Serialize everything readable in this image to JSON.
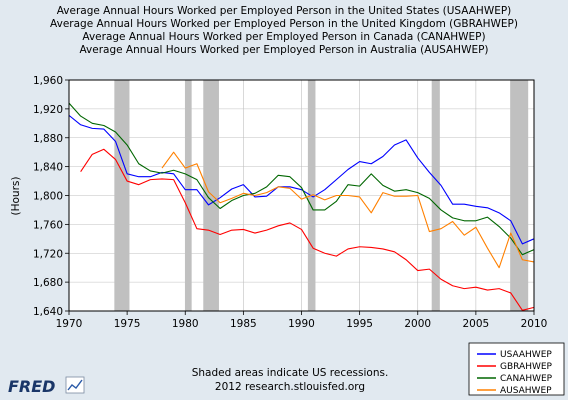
{
  "chart_data": {
    "type": "line",
    "titles": [
      "Average Annual Hours Worked per Employed Person in the United States (USAAHWEP)",
      "Average Annual Hours Worked per Employed Person in the United Kingdom (GBRAHWEP)",
      "Average Annual Hours Worked per Employed Person in Canada (CANAHWEP)",
      "Average Annual Hours Worked per Employed Person in Australia (AUSAHWEP)"
    ],
    "ylabel": "(Hours)",
    "xlabel": "",
    "xlim": [
      1970,
      2010
    ],
    "ylim": [
      1640,
      1960
    ],
    "x_ticks": [
      1970,
      1975,
      1980,
      1985,
      1990,
      1995,
      2000,
      2005,
      2010
    ],
    "y_ticks": [
      1640,
      1680,
      1720,
      1760,
      1800,
      1840,
      1880,
      1920,
      1960
    ],
    "y_tick_labels": [
      "1,640",
      "1,680",
      "1,720",
      "1,760",
      "1,800",
      "1,840",
      "1,880",
      "1,920",
      "1,960"
    ],
    "grid": true,
    "legend_position": "bottom-right",
    "recessions": [
      [
        1973.9,
        1975.2
      ],
      [
        1980.0,
        1980.55
      ],
      [
        1981.55,
        1982.9
      ],
      [
        1990.55,
        1991.2
      ],
      [
        2001.2,
        2001.9
      ],
      [
        2007.95,
        2009.5
      ]
    ],
    "x": [
      1970,
      1971,
      1972,
      1973,
      1974,
      1975,
      1976,
      1977,
      1978,
      1979,
      1980,
      1981,
      1982,
      1983,
      1984,
      1985,
      1986,
      1987,
      1988,
      1989,
      1990,
      1991,
      1992,
      1993,
      1994,
      1995,
      1996,
      1997,
      1998,
      1999,
      2000,
      2001,
      2002,
      2003,
      2004,
      2005,
      2006,
      2007,
      2008,
      2009,
      2010
    ],
    "series": [
      {
        "name": "USAAHWEP",
        "color": "#0000ff",
        "values": [
          1911,
          1898,
          1893,
          1892,
          1875,
          1830,
          1826,
          1826,
          1832,
          1830,
          1808,
          1808,
          1787,
          1797,
          1809,
          1815,
          1798,
          1799,
          1812,
          1812,
          1808,
          1798,
          1808,
          1822,
          1836,
          1847,
          1844,
          1854,
          1870,
          1877,
          1852,
          1832,
          1814,
          1788,
          1788,
          1785,
          1783,
          1776,
          1765,
          1733,
          1740
        ]
      },
      {
        "name": "GBRAHWEP",
        "color": "#ff0000",
        "values": [
          null,
          1833,
          1857,
          1864,
          1850,
          1820,
          1815,
          1822,
          1823,
          1822,
          1790,
          1754,
          1752,
          1746,
          1752,
          1753,
          1748,
          1752,
          1758,
          1762,
          1753,
          1727,
          1720,
          1716,
          1726,
          1729,
          1728,
          1726,
          1722,
          1711,
          1696,
          1698,
          1684,
          1675,
          1671,
          1673,
          1669,
          1671,
          1665,
          1641,
          1645
        ]
      },
      {
        "name": "CANAHWEP",
        "color": "#006600",
        "values": [
          1928,
          1910,
          1900,
          1897,
          1888,
          1870,
          1844,
          1834,
          1831,
          1835,
          1830,
          1822,
          1797,
          1782,
          1793,
          1800,
          1803,
          1812,
          1828,
          1826,
          1811,
          1780,
          1780,
          1792,
          1815,
          1813,
          1830,
          1814,
          1806,
          1808,
          1804,
          1796,
          1780,
          1769,
          1765,
          1765,
          1770,
          1757,
          1741,
          1718,
          1725
        ]
      },
      {
        "name": "AUSAHWEP",
        "color": "#ff8000",
        "values": [
          null,
          null,
          null,
          null,
          null,
          null,
          null,
          null,
          1838,
          1860,
          1838,
          1844,
          1805,
          1790,
          1796,
          1803,
          1800,
          1804,
          1812,
          1810,
          1795,
          1801,
          1794,
          1800,
          1800,
          1798,
          1776,
          1804,
          1799,
          1799,
          1800,
          1750,
          1754,
          1764,
          1745,
          1756,
          1727,
          1700,
          1748,
          1711,
          1708
        ]
      }
    ],
    "footer": [
      "Shaded areas indicate US recessions.",
      "2012 research.stlouisfed.org"
    ]
  },
  "branding": {
    "logo_text": "FRED"
  },
  "colors": {
    "background": "#e1e9f0",
    "plot_background": "#ffffff",
    "recession_shade": "#c0c0c0",
    "grid": "#c0c0c0"
  }
}
